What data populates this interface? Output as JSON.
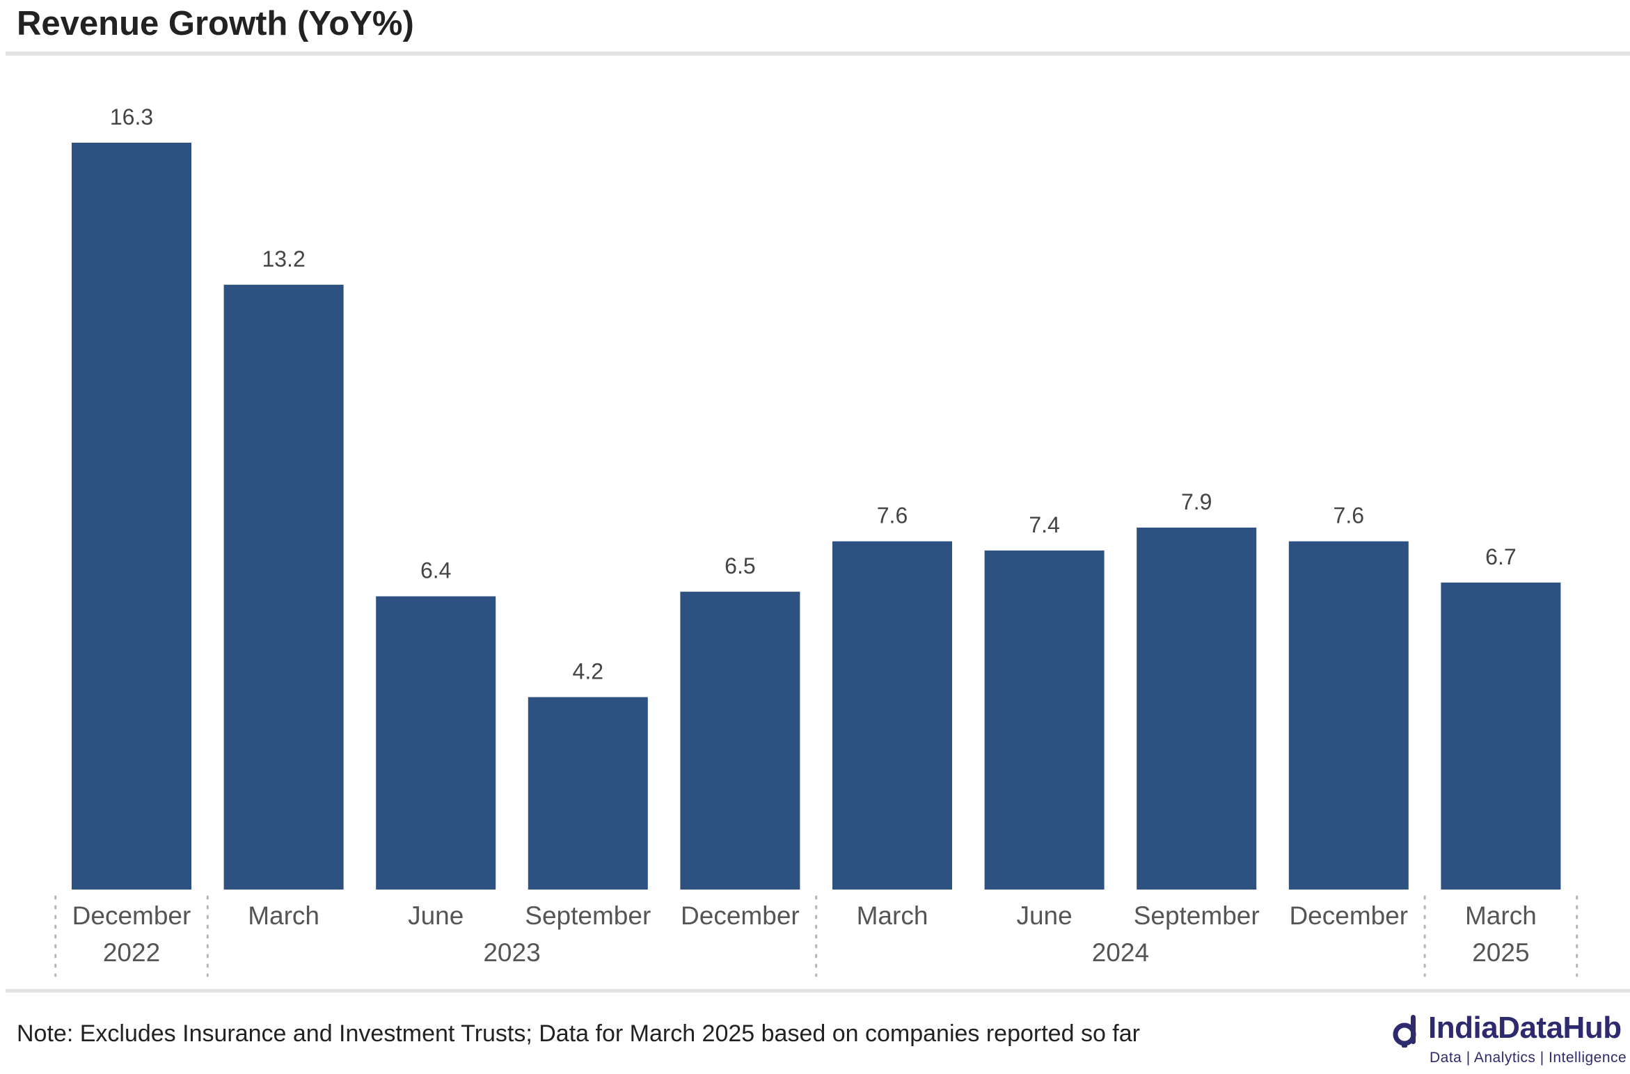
{
  "title": "Revenue Growth (YoY%)",
  "note": "Note: Excludes Insurance and Investment Trusts; Data for March 2025 based on companies reported so far",
  "logo": {
    "name": "IndiaDataHub",
    "tagline": "Data | Analytics | Intelligence"
  },
  "colors": {
    "bar": "#2d5181",
    "logo": "#2e2a6e"
  },
  "chart_data": {
    "type": "bar",
    "title": "Revenue Growth (YoY%)",
    "xlabel": "",
    "ylabel": "",
    "ylim": [
      0,
      16.3
    ],
    "grid": false,
    "legend": "none",
    "categories": [
      "December",
      "March",
      "June",
      "September",
      "December",
      "March",
      "June",
      "September",
      "December",
      "March"
    ],
    "years": [
      {
        "label": "2022",
        "start": 0,
        "end": 0
      },
      {
        "label": "2023",
        "start": 1,
        "end": 4
      },
      {
        "label": "2024",
        "start": 5,
        "end": 8
      },
      {
        "label": "2025",
        "start": 9,
        "end": 9
      }
    ],
    "values": [
      16.3,
      13.2,
      6.4,
      4.2,
      6.5,
      7.6,
      7.4,
      7.9,
      7.6,
      6.7
    ]
  }
}
